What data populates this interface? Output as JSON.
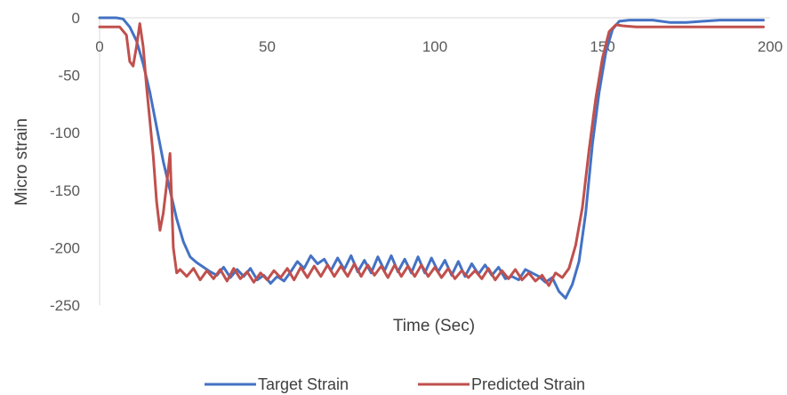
{
  "chart_data": {
    "type": "line",
    "title": "",
    "xlabel": "Time (Sec)",
    "ylabel": "Micro strain",
    "xlim": [
      0,
      200
    ],
    "ylim": [
      -250,
      0
    ],
    "x_ticks": [
      0,
      50,
      100,
      150,
      200
    ],
    "y_ticks": [
      0,
      -50,
      -100,
      -150,
      -200,
      -250
    ],
    "grid": false,
    "legend_position": "bottom",
    "series": [
      {
        "name": "Target Strain",
        "color": "#4472C4",
        "points": [
          [
            0,
            0
          ],
          [
            5,
            0
          ],
          [
            7,
            -1
          ],
          [
            9,
            -8
          ],
          [
            11,
            -20
          ],
          [
            13,
            -40
          ],
          [
            15,
            -65
          ],
          [
            17,
            -95
          ],
          [
            19,
            -125
          ],
          [
            21,
            -150
          ],
          [
            23,
            -175
          ],
          [
            25,
            -195
          ],
          [
            27,
            -208
          ],
          [
            29,
            -213
          ],
          [
            31,
            -217
          ],
          [
            33,
            -221
          ],
          [
            35,
            -224
          ],
          [
            37,
            -217
          ],
          [
            39,
            -226
          ],
          [
            41,
            -219
          ],
          [
            43,
            -225
          ],
          [
            45,
            -218
          ],
          [
            47,
            -228
          ],
          [
            49,
            -224
          ],
          [
            51,
            -231
          ],
          [
            53,
            -225
          ],
          [
            55,
            -229
          ],
          [
            57,
            -221
          ],
          [
            59,
            -212
          ],
          [
            61,
            -218
          ],
          [
            63,
            -207
          ],
          [
            65,
            -214
          ],
          [
            67,
            -210
          ],
          [
            69,
            -220
          ],
          [
            71,
            -209
          ],
          [
            73,
            -219
          ],
          [
            75,
            -207
          ],
          [
            77,
            -221
          ],
          [
            79,
            -211
          ],
          [
            81,
            -222
          ],
          [
            83,
            -208
          ],
          [
            85,
            -220
          ],
          [
            87,
            -207
          ],
          [
            89,
            -221
          ],
          [
            91,
            -210
          ],
          [
            93,
            -222
          ],
          [
            95,
            -208
          ],
          [
            97,
            -222
          ],
          [
            99,
            -209
          ],
          [
            101,
            -221
          ],
          [
            103,
            -211
          ],
          [
            105,
            -224
          ],
          [
            107,
            -212
          ],
          [
            109,
            -225
          ],
          [
            111,
            -214
          ],
          [
            113,
            -223
          ],
          [
            115,
            -215
          ],
          [
            117,
            -224
          ],
          [
            119,
            -217
          ],
          [
            121,
            -227
          ],
          [
            123,
            -225
          ],
          [
            125,
            -228
          ],
          [
            127,
            -219
          ],
          [
            129,
            -222
          ],
          [
            131,
            -225
          ],
          [
            133,
            -230
          ],
          [
            135,
            -226
          ],
          [
            137,
            -238
          ],
          [
            139,
            -244
          ],
          [
            141,
            -232
          ],
          [
            143,
            -212
          ],
          [
            145,
            -170
          ],
          [
            147,
            -110
          ],
          [
            149,
            -65
          ],
          [
            151,
            -30
          ],
          [
            153,
            -10
          ],
          [
            155,
            -3
          ],
          [
            158,
            -2
          ],
          [
            165,
            -2
          ],
          [
            170,
            -4
          ],
          [
            175,
            -4
          ],
          [
            180,
            -3
          ],
          [
            185,
            -2
          ],
          [
            190,
            -2
          ],
          [
            195,
            -2
          ],
          [
            198,
            -2
          ]
        ]
      },
      {
        "name": "Predicted Strain",
        "color": "#C0504D",
        "points": [
          [
            0,
            -8
          ],
          [
            6,
            -8
          ],
          [
            8,
            -15
          ],
          [
            9,
            -38
          ],
          [
            10,
            -42
          ],
          [
            11,
            -25
          ],
          [
            12,
            -5
          ],
          [
            13,
            -25
          ],
          [
            14,
            -60
          ],
          [
            15,
            -90
          ],
          [
            16,
            -120
          ],
          [
            17,
            -160
          ],
          [
            18,
            -185
          ],
          [
            19,
            -170
          ],
          [
            20,
            -145
          ],
          [
            21,
            -118
          ],
          [
            22,
            -200
          ],
          [
            23,
            -222
          ],
          [
            24,
            -219
          ],
          [
            26,
            -225
          ],
          [
            28,
            -218
          ],
          [
            30,
            -228
          ],
          [
            32,
            -220
          ],
          [
            34,
            -227
          ],
          [
            36,
            -219
          ],
          [
            38,
            -229
          ],
          [
            40,
            -218
          ],
          [
            42,
            -227
          ],
          [
            44,
            -221
          ],
          [
            46,
            -230
          ],
          [
            48,
            -222
          ],
          [
            50,
            -228
          ],
          [
            52,
            -220
          ],
          [
            54,
            -226
          ],
          [
            56,
            -218
          ],
          [
            58,
            -228
          ],
          [
            60,
            -217
          ],
          [
            62,
            -226
          ],
          [
            64,
            -216
          ],
          [
            66,
            -225
          ],
          [
            68,
            -215
          ],
          [
            70,
            -225
          ],
          [
            72,
            -216
          ],
          [
            74,
            -225
          ],
          [
            76,
            -214
          ],
          [
            78,
            -225
          ],
          [
            80,
            -215
          ],
          [
            82,
            -224
          ],
          [
            84,
            -216
          ],
          [
            86,
            -226
          ],
          [
            88,
            -215
          ],
          [
            90,
            -225
          ],
          [
            92,
            -216
          ],
          [
            94,
            -225
          ],
          [
            96,
            -215
          ],
          [
            98,
            -225
          ],
          [
            100,
            -217
          ],
          [
            102,
            -226
          ],
          [
            104,
            -218
          ],
          [
            106,
            -227
          ],
          [
            108,
            -220
          ],
          [
            110,
            -226
          ],
          [
            112,
            -220
          ],
          [
            114,
            -227
          ],
          [
            116,
            -218
          ],
          [
            118,
            -228
          ],
          [
            120,
            -220
          ],
          [
            122,
            -227
          ],
          [
            124,
            -219
          ],
          [
            126,
            -228
          ],
          [
            128,
            -222
          ],
          [
            130,
            -229
          ],
          [
            132,
            -224
          ],
          [
            134,
            -233
          ],
          [
            136,
            -222
          ],
          [
            138,
            -226
          ],
          [
            140,
            -218
          ],
          [
            142,
            -198
          ],
          [
            144,
            -165
          ],
          [
            146,
            -115
          ],
          [
            148,
            -70
          ],
          [
            150,
            -35
          ],
          [
            152,
            -12
          ],
          [
            154,
            -6
          ],
          [
            156,
            -7
          ],
          [
            160,
            -8
          ],
          [
            170,
            -8
          ],
          [
            180,
            -8
          ],
          [
            190,
            -8
          ],
          [
            198,
            -8
          ]
        ]
      }
    ]
  }
}
